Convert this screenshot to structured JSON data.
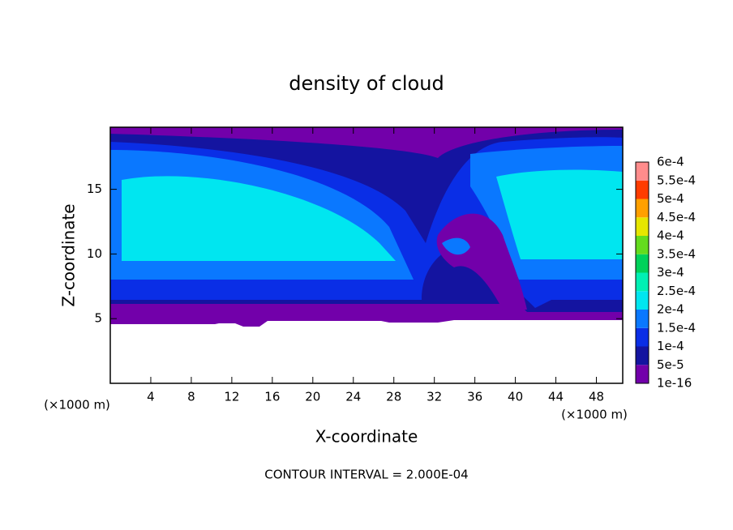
{
  "chart_data": {
    "type": "contour",
    "title": "density of cloud",
    "xlabel": "X-coordinate",
    "ylabel": "Z-coordinate",
    "x_unit": "(×1000 m)",
    "y_unit": "(×1000 m)",
    "footnote": "CONTOUR INTERVAL = 2.000E-04",
    "xlim": [
      0,
      50.6
    ],
    "ylim": [
      0,
      19.8
    ],
    "xticks": [
      4,
      8,
      12,
      16,
      20,
      24,
      28,
      32,
      36,
      40,
      44,
      48
    ],
    "yticks": [
      5,
      10,
      15
    ],
    "colorbar": {
      "levels": [
        {
          "value": 1e-16,
          "label": "1e-16"
        },
        {
          "value": 5e-05,
          "label": "5e-5"
        },
        {
          "value": 0.0001,
          "label": "1e-4"
        },
        {
          "value": 0.00015,
          "label": "1.5e-4"
        },
        {
          "value": 0.0002,
          "label": "2e-4"
        },
        {
          "value": 0.00025,
          "label": "2.5e-4"
        },
        {
          "value": 0.0003,
          "label": "3e-4"
        },
        {
          "value": 0.00035,
          "label": "3.5e-4"
        },
        {
          "value": 0.0004,
          "label": "4e-4"
        },
        {
          "value": 0.00045,
          "label": "4.5e-4"
        },
        {
          "value": 0.0005,
          "label": "5e-4"
        },
        {
          "value": 0.00055,
          "label": "5.5e-4"
        },
        {
          "value": 0.0006,
          "label": "6e-4"
        }
      ],
      "colors": [
        "#7200aa",
        "#1414a0",
        "#0a2ee6",
        "#0a78ff",
        "#00e6f0",
        "#00f0b4",
        "#00d25a",
        "#64dc1e",
        "#e6e600",
        "#ffa000",
        "#ff3c00",
        "#ff8c8c"
      ]
    }
  }
}
